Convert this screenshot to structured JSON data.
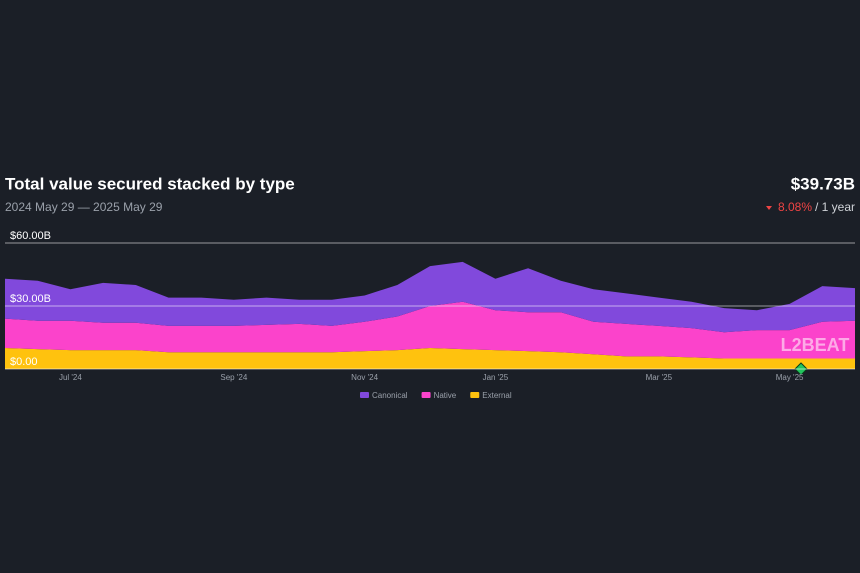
{
  "chart_data": {
    "type": "stacked-area",
    "title": "Total value secured stacked by type",
    "subtitle": "2024 May 29 — 2025 May 29",
    "total": "$39.73B",
    "change": "8.08%",
    "change_period": "/ 1 year",
    "watermark": "L2BEAT",
    "categories": [
      null,
      null,
      "Jul '24",
      null,
      null,
      null,
      null,
      "Sep '24",
      null,
      null,
      null,
      "Nov '24",
      null,
      null,
      null,
      "Jan '25",
      null,
      null,
      null,
      null,
      "Mar '25",
      null,
      null,
      null,
      "May '25",
      null,
      null
    ],
    "series": [
      {
        "name": "Canonical",
        "color": "#8149dc",
        "values": [
          19,
          19,
          15,
          19,
          18,
          13.5,
          13.5,
          12.5,
          13,
          11.5,
          12.5,
          12.5,
          15,
          19,
          19,
          15,
          21,
          15,
          15.5,
          14.5,
          13.5,
          12.5,
          11.5,
          9.5,
          12.5,
          17,
          15.5
        ]
      },
      {
        "name": "Native",
        "color": "#fb43cb",
        "values": [
          14,
          13.5,
          14,
          13,
          13,
          12.5,
          12.5,
          12.5,
          13,
          13.5,
          12.5,
          14,
          16,
          20,
          22.5,
          19,
          18.5,
          19,
          15.5,
          15.5,
          14.5,
          14,
          12.5,
          13.5,
          13.5,
          17.5,
          18
        ]
      },
      {
        "name": "External",
        "color": "#ffc20e",
        "values": [
          10,
          9.5,
          9,
          9,
          9,
          8,
          8,
          8,
          8,
          8,
          8,
          8.5,
          9,
          10,
          9.5,
          9,
          8.5,
          8,
          7,
          6,
          6,
          5.5,
          5,
          5,
          5,
          5,
          5
        ]
      }
    ],
    "ylim": [
      0,
      60
    ],
    "yticks": [
      {
        "value": 0,
        "label": "$0.00"
      },
      {
        "value": 30,
        "label": "$30.00B"
      },
      {
        "value": 60,
        "label": "$60.00B"
      }
    ],
    "grid": true
  }
}
